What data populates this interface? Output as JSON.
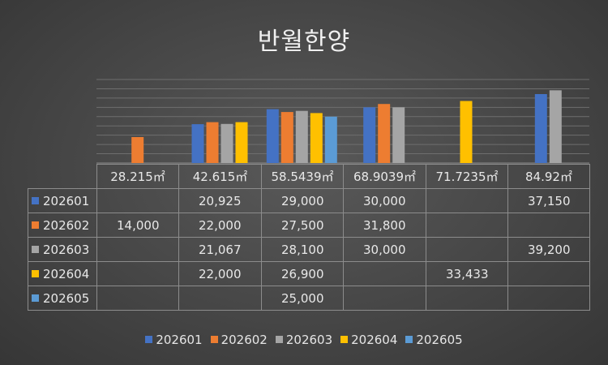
{
  "chart_data": {
    "type": "bar",
    "title": "반월한양",
    "categories": [
      "28.215㎡",
      "42.615㎡",
      "58.5439㎡",
      "68.9039㎡",
      "71.7235㎡",
      "84.92㎡"
    ],
    "series": [
      {
        "name": "202601",
        "color": "#4472c4",
        "values": [
          null,
          20925,
          29000,
          30000,
          null,
          37150
        ]
      },
      {
        "name": "202602",
        "color": "#ed7d31",
        "values": [
          14000,
          22000,
          27500,
          31800,
          null,
          null
        ]
      },
      {
        "name": "202603",
        "color": "#a5a5a5",
        "values": [
          null,
          21067,
          28100,
          30000,
          null,
          39200
        ]
      },
      {
        "name": "202604",
        "color": "#ffc000",
        "values": [
          null,
          22000,
          26900,
          null,
          33433,
          null
        ]
      },
      {
        "name": "202605",
        "color": "#5b9bd5",
        "values": [
          null,
          null,
          25000,
          null,
          null,
          null
        ]
      }
    ],
    "display_values": [
      [
        "",
        "20,925",
        "29,000",
        "30,000",
        "",
        "37,150"
      ],
      [
        "14,000",
        "22,000",
        "27,500",
        "31,800",
        "",
        ""
      ],
      [
        "",
        "21,067",
        "28,100",
        "30,000",
        "",
        "39,200"
      ],
      [
        "",
        "22,000",
        "26,900",
        "",
        "33,433",
        ""
      ],
      [
        "",
        "",
        "25,000",
        "",
        "",
        ""
      ]
    ],
    "ylim": [
      0,
      45000
    ],
    "grid": true,
    "legend_position": "bottom",
    "data_table": true
  }
}
